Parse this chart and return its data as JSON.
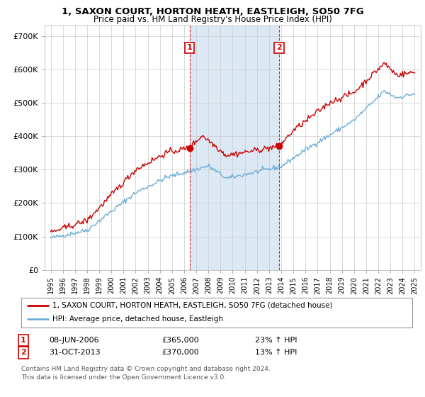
{
  "title": "1, SAXON COURT, HORTON HEATH, EASTLEIGH, SO50 7FG",
  "subtitle": "Price paid vs. HM Land Registry's House Price Index (HPI)",
  "legend_line1": "1, SAXON COURT, HORTON HEATH, EASTLEIGH, SO50 7FG (detached house)",
  "legend_line2": "HPI: Average price, detached house, Eastleigh",
  "annotation1": {
    "label": "1",
    "date": "08-JUN-2006",
    "price": "£365,000",
    "change": "23% ↑ HPI"
  },
  "annotation2": {
    "label": "2",
    "date": "31-OCT-2013",
    "price": "£370,000",
    "change": "13% ↑ HPI"
  },
  "footer1": "Contains HM Land Registry data © Crown copyright and database right 2024.",
  "footer2": "This data is licensed under the Open Government Licence v3.0.",
  "hpi_color": "#6baed6",
  "price_color": "#cc0000",
  "marker1_x": 2006.44,
  "marker2_x": 2013.83,
  "marker1_y": 365000,
  "marker2_y": 370000,
  "ylim": [
    0,
    730000
  ],
  "xlim": [
    1994.5,
    2025.5
  ],
  "yticks": [
    0,
    100000,
    200000,
    300000,
    400000,
    500000,
    600000,
    700000
  ],
  "ytick_labels": [
    "£0",
    "£100K",
    "£200K",
    "£300K",
    "£400K",
    "£500K",
    "£600K",
    "£700K"
  ],
  "xticks": [
    1995,
    1996,
    1997,
    1998,
    1999,
    2000,
    2001,
    2002,
    2003,
    2004,
    2005,
    2006,
    2007,
    2008,
    2009,
    2010,
    2011,
    2012,
    2013,
    2014,
    2015,
    2016,
    2017,
    2018,
    2019,
    2020,
    2021,
    2022,
    2023,
    2024,
    2025
  ],
  "plot_bg": "#ffffff",
  "shade_color": "#dce9f5"
}
